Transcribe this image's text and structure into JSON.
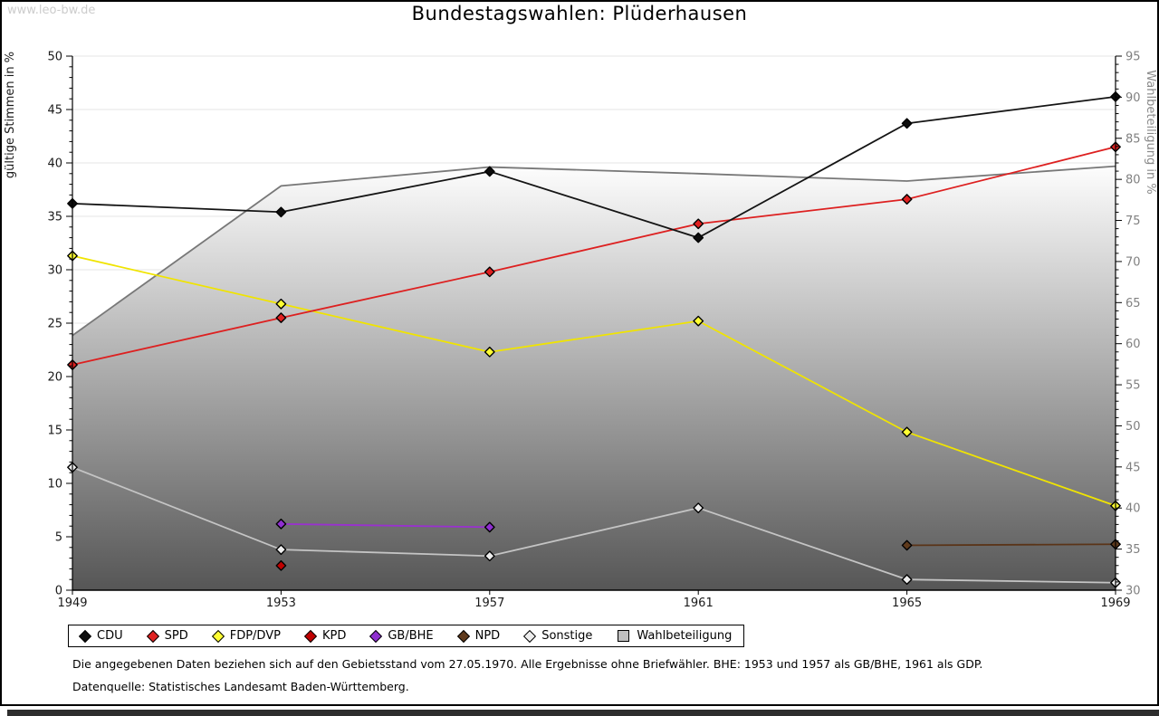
{
  "watermark": "www.leo-bw.de",
  "title": "Bundestagswahlen: Plüderhausen",
  "footnotes": {
    "line1": "Die angegebenen Daten beziehen sich auf den Gebietsstand vom 27.05.1970. Alle Ergebnisse ohne Briefwähler. BHE: 1953 und 1957 als GB/BHE, 1961 als GDP.",
    "line2": "Datenquelle: Statistisches Landesamt Baden-Württemberg."
  },
  "legend": {
    "items": [
      {
        "label": "CDU",
        "marker": "diamond",
        "color": "#0d0d0d"
      },
      {
        "label": "SPD",
        "marker": "diamond",
        "color": "#e02020"
      },
      {
        "label": "FDP/DVP",
        "marker": "diamond",
        "color": "#ffff33"
      },
      {
        "label": "KPD",
        "marker": "diamond",
        "color": "#c00000"
      },
      {
        "label": "GB/BHE",
        "marker": "diamond",
        "color": "#8f2fd0"
      },
      {
        "label": "NPD",
        "marker": "diamond",
        "color": "#5f3a1c"
      },
      {
        "label": "Sonstige",
        "marker": "diamond",
        "color": "#ededed"
      },
      {
        "label": "Wahlbeteiligung",
        "marker": "square",
        "color": "#bfbfbf"
      }
    ]
  },
  "chart_data": {
    "type": "line",
    "title": "Bundestagswahlen: Plüderhausen",
    "x": [
      1949,
      1953,
      1957,
      1961,
      1965,
      1969
    ],
    "x_tick_labels": [
      "1949",
      "1953",
      "1957",
      "1961",
      "1965",
      "1969"
    ],
    "left_axis": {
      "label": "gültige Stimmen in %",
      "min": 0,
      "max": 50,
      "major_step": 5,
      "minor_step": 1
    },
    "right_axis": {
      "label": "Wahlbeteiligung in %",
      "min": 30,
      "max": 95,
      "major_step": 5,
      "minor_step": 1
    },
    "grid": "horizontal-major-left-axis",
    "legend_position": "bottom",
    "area_series": {
      "name": "Wahlbeteiligung",
      "axis": "right",
      "x": [
        1949,
        1953,
        1957,
        1961,
        1965,
        1969
      ],
      "values": [
        61.0,
        79.2,
        81.5,
        80.7,
        79.8,
        81.6
      ],
      "fill_gradient_top": "#fdfdfd",
      "fill_gradient_bottom": "#565656",
      "line_color": "#787878"
    },
    "series": [
      {
        "name": "Sonstige",
        "axis": "left",
        "x": [
          1949,
          1953,
          1957,
          1961,
          1965,
          1969
        ],
        "values": [
          11.5,
          3.8,
          3.2,
          7.7,
          1.0,
          0.7
        ],
        "line_color": "#c4c4c4",
        "marker_color": "#ededed"
      },
      {
        "name": "GB/BHE",
        "axis": "left",
        "x": [
          1953,
          1957
        ],
        "values": [
          6.2,
          5.9
        ],
        "line_color": "#9a30d0",
        "marker_color": "#8f2fd0"
      },
      {
        "name": "NPD",
        "axis": "left",
        "x": [
          1965,
          1969
        ],
        "values": [
          4.2,
          4.3
        ],
        "line_color": "#5a3418",
        "marker_color": "#5f3a1c"
      },
      {
        "name": "KPD",
        "axis": "left",
        "x": [
          1953
        ],
        "values": [
          2.3
        ],
        "line_color": "#c00000",
        "marker_color": "#c00000"
      },
      {
        "name": "FDP/DVP",
        "axis": "left",
        "x": [
          1949,
          1953,
          1957,
          1961,
          1965,
          1969
        ],
        "values": [
          31.3,
          26.8,
          22.3,
          25.2,
          14.8,
          7.9
        ],
        "line_color": "#f0e400",
        "marker_color": "#ffff33"
      },
      {
        "name": "SPD",
        "axis": "left",
        "x": [
          1949,
          1953,
          1957,
          1961,
          1965,
          1969
        ],
        "values": [
          21.1,
          25.5,
          29.8,
          34.3,
          36.6,
          41.5
        ],
        "line_color": "#dd2020",
        "marker_color": "#e02020"
      },
      {
        "name": "CDU",
        "axis": "left",
        "x": [
          1949,
          1953,
          1957,
          1961,
          1965,
          1969
        ],
        "values": [
          36.2,
          35.4,
          39.2,
          33.0,
          43.7,
          46.2
        ],
        "line_color": "#141414",
        "marker_color": "#0d0d0d"
      }
    ]
  }
}
